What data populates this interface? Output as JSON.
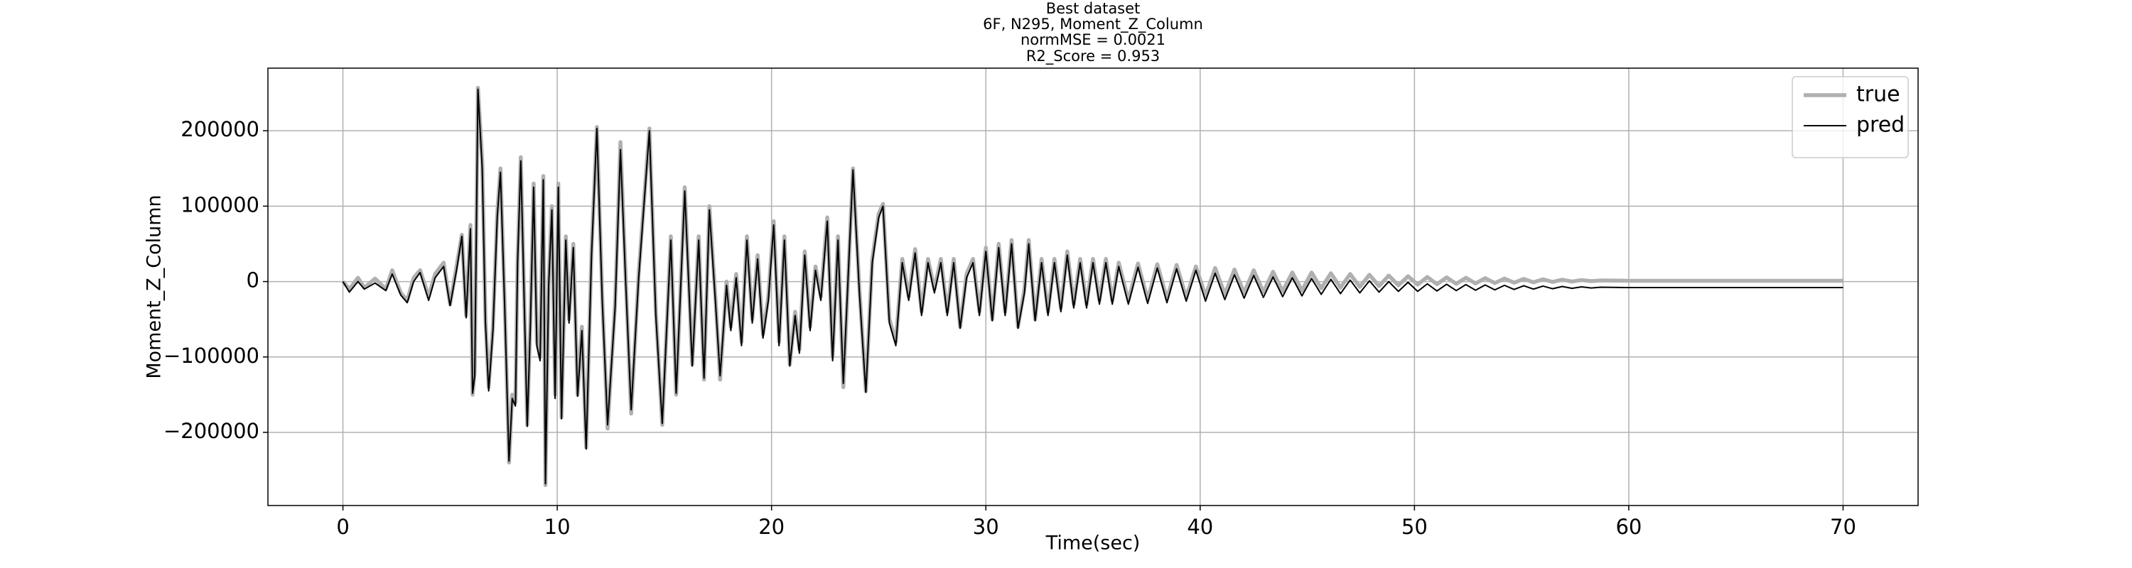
{
  "chart_data": {
    "type": "line",
    "title": [
      "Best dataset",
      "6F, N295, Moment_Z_Column",
      "normMSE = 0.0021",
      "R2_Score = 0.953"
    ],
    "x_label": "Time(sec)",
    "y_label": "Moment_Z_Column",
    "xlim": [
      -3.5,
      73.5
    ],
    "xticks": [
      0,
      10,
      20,
      30,
      40,
      50,
      60,
      70
    ],
    "ylim": [
      -297000,
      283000
    ],
    "yticks": [
      {
        "value": -200000,
        "label": "−200000"
      },
      {
        "value": -100000,
        "label": "−100000"
      },
      0,
      100000,
      200000
    ],
    "grid": true,
    "legend": "upper right",
    "x": [
      0,
      0.3,
      0.7,
      1.0,
      1.5,
      2.0,
      2.3,
      2.7,
      3.0,
      3.3,
      3.6,
      4.0,
      4.3,
      4.7,
      5.0,
      5.3,
      5.55,
      5.75,
      5.95,
      6.05,
      6.15,
      6.3,
      6.5,
      6.65,
      6.8,
      7.0,
      7.2,
      7.35,
      7.55,
      7.75,
      7.9,
      8.05,
      8.15,
      8.3,
      8.45,
      8.6,
      8.75,
      8.9,
      9.05,
      9.2,
      9.35,
      9.45,
      9.6,
      9.75,
      9.9,
      10.05,
      10.2,
      10.4,
      10.55,
      10.75,
      10.95,
      11.15,
      11.35,
      11.6,
      11.85,
      12.1,
      12.35,
      12.7,
      12.95,
      13.2,
      13.45,
      13.8,
      14.3,
      14.6,
      14.9,
      15.3,
      15.55,
      15.95,
      16.3,
      16.6,
      16.85,
      17.1,
      17.4,
      17.6,
      17.9,
      18.1,
      18.35,
      18.6,
      18.85,
      19.1,
      19.35,
      19.6,
      19.85,
      20.1,
      20.35,
      20.6,
      20.85,
      21.1,
      21.3,
      21.55,
      21.8,
      22.05,
      22.3,
      22.6,
      22.85,
      23.1,
      23.35,
      23.8,
      24.1,
      24.4,
      24.7,
      25.0,
      25.2,
      25.5,
      25.8,
      26.1,
      26.4,
      26.7,
      27.0,
      27.3,
      27.6,
      27.9,
      28.2,
      28.5,
      28.8,
      29.1,
      29.4,
      29.7,
      30.0,
      30.3,
      30.6,
      30.9,
      31.2,
      31.5,
      31.8,
      32.0,
      32.3,
      32.6,
      32.9,
      33.2,
      33.5,
      33.8,
      34.1,
      34.4,
      34.7,
      35.0,
      35.3,
      35.6,
      35.9,
      36.2,
      36.65,
      37.1,
      37.55,
      38.0,
      38.45,
      38.9,
      39.35,
      39.8,
      40.25,
      40.7,
      41.15,
      41.6,
      42.05,
      42.5,
      42.95,
      43.4,
      43.85,
      44.3,
      44.75,
      45.2,
      45.65,
      46.1,
      46.55,
      47.0,
      47.45,
      47.9,
      48.35,
      48.8,
      49.25,
      49.7,
      50.15,
      50.6,
      51.05,
      51.5,
      51.95,
      52.4,
      52.85,
      53.3,
      53.75,
      54.2,
      54.65,
      55.1,
      55.55,
      56.0,
      56.45,
      56.9,
      57.35,
      57.8,
      58.25,
      58.7,
      60.0,
      65.0,
      70.0
    ],
    "series": [
      {
        "name": "true",
        "color": "#b0b0b0",
        "values": [
          0,
          -10000,
          5000,
          -8000,
          4000,
          -10000,
          15000,
          -15000,
          -25000,
          5000,
          15000,
          -20000,
          10000,
          25000,
          -30000,
          20000,
          62000,
          -45000,
          75000,
          -150000,
          -120000,
          257000,
          160000,
          -50000,
          -140000,
          -60000,
          90000,
          150000,
          -30000,
          -240000,
          -150000,
          -160000,
          30000,
          165000,
          -10000,
          -190000,
          -50000,
          130000,
          -80000,
          -100000,
          140000,
          -270000,
          0,
          100000,
          -150000,
          130000,
          -180000,
          60000,
          -50000,
          50000,
          -150000,
          -60000,
          -220000,
          40000,
          205000,
          -20000,
          -195000,
          -30000,
          185000,
          0,
          -175000,
          10000,
          203000,
          -40000,
          -190000,
          60000,
          -150000,
          125000,
          -110000,
          60000,
          -130000,
          100000,
          -30000,
          -130000,
          0,
          -60000,
          10000,
          -80000,
          60000,
          -50000,
          35000,
          -70000,
          -20000,
          80000,
          -80000,
          60000,
          -110000,
          -40000,
          -90000,
          40000,
          -60000,
          20000,
          -20000,
          85000,
          -100000,
          60000,
          -140000,
          150000,
          -10000,
          -145000,
          30000,
          90000,
          103000,
          -50000,
          -80000,
          30000,
          -20000,
          43000,
          -40000,
          30000,
          -10000,
          30000,
          -40000,
          30000,
          -60000,
          10000,
          30000,
          -40000,
          45000,
          -50000,
          50000,
          -40000,
          55000,
          -60000,
          -10000,
          55000,
          -50000,
          30000,
          -40000,
          30000,
          -35000,
          40000,
          -30000,
          30000,
          -30000,
          30000,
          -25000,
          30000,
          -25000,
          25000,
          -25000,
          24000,
          -24000,
          23000,
          -23000,
          22000,
          -21000,
          20000,
          -19000,
          18000,
          -17000,
          16000,
          -15000,
          15000,
          -14000,
          13000,
          -13000,
          12000,
          -12000,
          12000,
          -9000,
          11000,
          -8000,
          10000,
          -7000,
          9000,
          -6000,
          8000,
          -5000,
          7000,
          -4000,
          6000,
          -3500,
          5500,
          -3000,
          5000,
          -2500,
          4500,
          -2000,
          4000,
          -1500,
          3500,
          -1000,
          3000,
          -500,
          2500,
          0,
          2000,
          500,
          1500,
          1000,
          1000,
          1000
        ]
      },
      {
        "name": "pred",
        "color": "#000000",
        "values": [
          0,
          -14000,
          0,
          -10000,
          -2000,
          -12000,
          10000,
          -18000,
          -28000,
          0,
          12000,
          -25000,
          5000,
          20000,
          -32000,
          15000,
          60000,
          -48000,
          70000,
          -148000,
          -125000,
          255000,
          150000,
          -55000,
          -145000,
          -65000,
          85000,
          145000,
          -35000,
          -238000,
          -155000,
          -165000,
          25000,
          160000,
          -15000,
          -192000,
          -55000,
          125000,
          -85000,
          -105000,
          135000,
          -268000,
          -5000,
          95000,
          -155000,
          125000,
          -182000,
          55000,
          -55000,
          45000,
          -152000,
          -65000,
          -222000,
          35000,
          203000,
          -25000,
          -190000,
          -35000,
          175000,
          -5000,
          -170000,
          5000,
          200000,
          -45000,
          -188000,
          55000,
          -148000,
          120000,
          -112000,
          55000,
          -128000,
          95000,
          -35000,
          -125000,
          -5000,
          -65000,
          5000,
          -85000,
          55000,
          -55000,
          30000,
          -75000,
          -25000,
          75000,
          -85000,
          55000,
          -112000,
          -45000,
          -95000,
          35000,
          -65000,
          15000,
          -25000,
          80000,
          -105000,
          55000,
          -135000,
          148000,
          -15000,
          -147000,
          25000,
          85000,
          100000,
          -55000,
          -85000,
          25000,
          -25000,
          38000,
          -45000,
          25000,
          -15000,
          25000,
          -45000,
          25000,
          -62000,
          5000,
          25000,
          -45000,
          40000,
          -52000,
          45000,
          -45000,
          50000,
          -62000,
          -15000,
          50000,
          -52000,
          25000,
          -45000,
          25000,
          -40000,
          35000,
          -35000,
          25000,
          -35000,
          25000,
          -30000,
          25000,
          -30000,
          20000,
          -30000,
          19000,
          -29000,
          18000,
          -28000,
          17000,
          -26000,
          15000,
          -26000,
          11000,
          -24000,
          9000,
          -22000,
          8000,
          -21000,
          6000,
          -20000,
          5000,
          -19000,
          4000,
          -17000,
          3000,
          -16000,
          2000,
          -15000,
          1000,
          -14000,
          0,
          -13000,
          -1000,
          -13000,
          -3000,
          -12500,
          -3500,
          -12000,
          -4000,
          -11500,
          -4500,
          -11000,
          -5000,
          -10500,
          -5500,
          -10000,
          -6000,
          -9500,
          -6500,
          -9000,
          -7000,
          -8500,
          -7500,
          -8000,
          -8000,
          -8000
        ]
      }
    ]
  }
}
